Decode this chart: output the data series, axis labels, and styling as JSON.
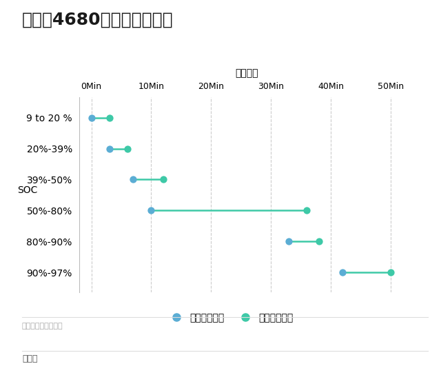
{
  "title": "特斯拉4680标准版快充功率",
  "xlabel": "充电时间",
  "ylabel": "SOC",
  "categories": [
    "9 to 20 %",
    "20%-39%",
    "39%-50%",
    "50%-80%",
    "80%-90%",
    "90%-97%"
  ],
  "start_times": [
    0,
    3,
    7,
    10,
    33,
    42
  ],
  "end_times": [
    3,
    6,
    12,
    36,
    38,
    50
  ],
  "xtick_values": [
    0,
    10,
    20,
    30,
    40,
    50
  ],
  "xtick_labels": [
    "0Min",
    "10Min",
    "20Min",
    "30Min",
    "40Min",
    "50Min"
  ],
  "xlim": [
    -2,
    54
  ],
  "start_color": "#5BADD4",
  "end_color": "#3EC9A7",
  "line_color": "#3EC9A7",
  "background_color": "#ffffff",
  "grid_color": "#cccccc",
  "legend_label_start": "耗费时间起点",
  "legend_label_end": "耗费时间终点",
  "source_text": "数据来源：测试数据",
  "author_text": "朱玉龙",
  "title_fontsize": 18,
  "label_fontsize": 10,
  "tick_fontsize": 9,
  "legend_fontsize": 10,
  "source_fontsize": 8,
  "author_fontsize": 9
}
